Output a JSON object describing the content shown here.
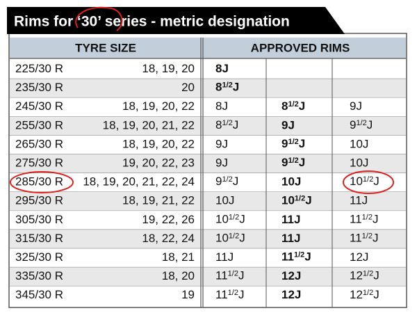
{
  "header": {
    "title": "Rims for ‘30’ series - metric designation"
  },
  "table": {
    "columns": [
      "TYRE SIZE",
      "APPROVED RIMS"
    ],
    "rows": [
      {
        "tyre": "225/30 R",
        "sizes": "18, 19, 20",
        "rims": [
          "8J"
        ]
      },
      {
        "tyre": "235/30 R",
        "sizes": "20",
        "rims": [
          [
            "8",
            "1/2",
            "J"
          ]
        ]
      },
      {
        "tyre": "245/30 R",
        "sizes": "18, 19, 20, 22",
        "rims": [
          "8J",
          [
            "8",
            "1/2",
            "J"
          ],
          "9J"
        ]
      },
      {
        "tyre": "255/30 R",
        "sizes": "18, 19, 20, 21, 22",
        "rims": [
          [
            "8",
            "1/2",
            "J"
          ],
          "9J",
          [
            "9",
            "1/2",
            "J"
          ]
        ]
      },
      {
        "tyre": "265/30 R",
        "sizes": "18, 19, 20, 22",
        "rims": [
          "9J",
          [
            "9",
            "1/2",
            "J"
          ],
          "10J"
        ]
      },
      {
        "tyre": "275/30 R",
        "sizes": "19, 20, 22, 23",
        "rims": [
          "9J",
          [
            "9",
            "1/2",
            "J"
          ],
          "10J"
        ]
      },
      {
        "tyre": "285/30 R",
        "sizes": "18, 19, 20, 21, 22, 24",
        "rims": [
          [
            "9",
            "1/2",
            "J"
          ],
          "10J",
          [
            "10",
            "1/2",
            "J"
          ]
        ]
      },
      {
        "tyre": "295/30 R",
        "sizes": "18, 19, 21, 22",
        "rims": [
          "10J",
          [
            "10",
            "1/2",
            "J"
          ],
          "11J"
        ]
      },
      {
        "tyre": "305/30 R",
        "sizes": "19, 22, 26",
        "rims": [
          [
            "10",
            "1/2",
            "J"
          ],
          "11J",
          [
            "11",
            "1/2",
            "J"
          ]
        ]
      },
      {
        "tyre": "315/30 R",
        "sizes": "18, 22, 24",
        "rims": [
          [
            "10",
            "1/2",
            "J"
          ],
          "11J",
          [
            "11",
            "1/2",
            "J"
          ]
        ]
      },
      {
        "tyre": "325/30 R",
        "sizes": "18, 21",
        "rims": [
          "11J",
          [
            "11",
            "1/2",
            "J"
          ],
          "12J"
        ]
      },
      {
        "tyre": "335/30 R",
        "sizes": "18, 20",
        "rims": [
          [
            "11",
            "1/2",
            "J"
          ],
          "12J",
          [
            "12",
            "1/2",
            "J"
          ]
        ]
      },
      {
        "tyre": "345/30 R",
        "sizes": "19",
        "rims": [
          [
            "11",
            "1/2",
            "J"
          ],
          "12J",
          [
            "12",
            "1/2",
            "J"
          ]
        ]
      }
    ]
  }
}
